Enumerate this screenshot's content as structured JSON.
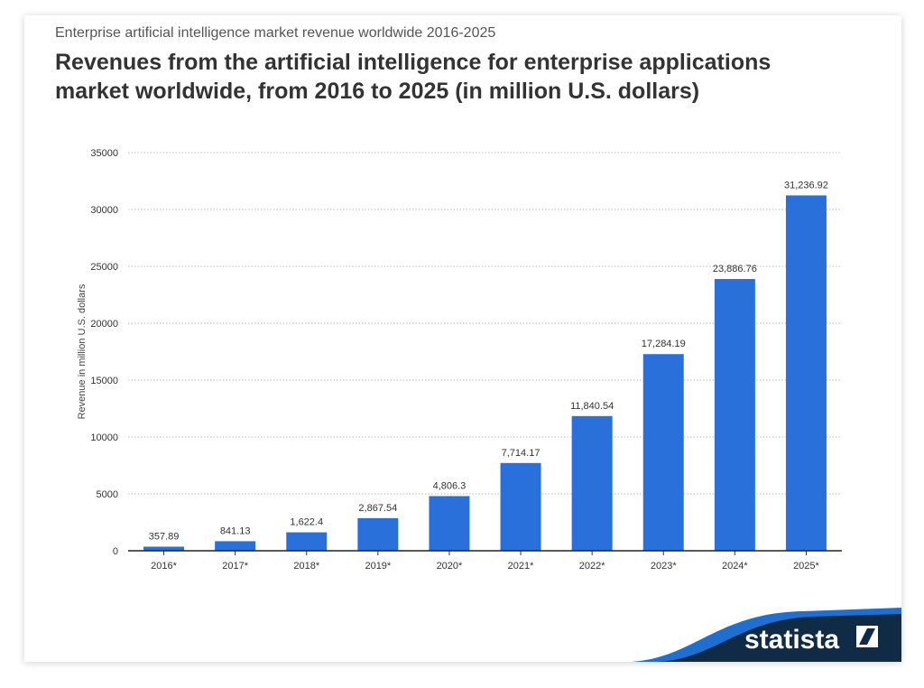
{
  "header": {
    "subtitle": "Enterprise artificial intelligence market revenue worldwide 2016-2025",
    "title": "Revenues from the artificial intelligence for enterprise applications market worldwide, from 2016 to 2025 (in million U.S. dollars)"
  },
  "brand": {
    "name": "statista"
  },
  "colors": {
    "bar": "#2a70db",
    "brand_dark": "#0f2b46",
    "brand_accent": "#1f6fd1"
  },
  "chart_data": {
    "type": "bar",
    "categories": [
      "2016*",
      "2017*",
      "2018*",
      "2019*",
      "2020*",
      "2021*",
      "2022*",
      "2023*",
      "2024*",
      "2025*"
    ],
    "values": [
      357.89,
      841.13,
      1622.4,
      2867.54,
      4806.3,
      7714.17,
      11840.54,
      17284.19,
      23886.76,
      31236.92
    ],
    "data_labels": [
      "357.89",
      "841.13",
      "1,622.4",
      "2,867.54",
      "4,806.3",
      "7,714.17",
      "11,840.54",
      "17,284.19",
      "23,886.76",
      "31,236.92"
    ],
    "ylabel": "Revenue in million U.S. dollars",
    "ylim": [
      0,
      35000
    ],
    "yticks": [
      0,
      5000,
      10000,
      15000,
      20000,
      25000,
      30000,
      35000
    ],
    "ytick_labels": [
      "0",
      "5000",
      "10000",
      "15000",
      "20000",
      "25000",
      "30000",
      "35000"
    ],
    "grid": true,
    "legend": "none"
  }
}
